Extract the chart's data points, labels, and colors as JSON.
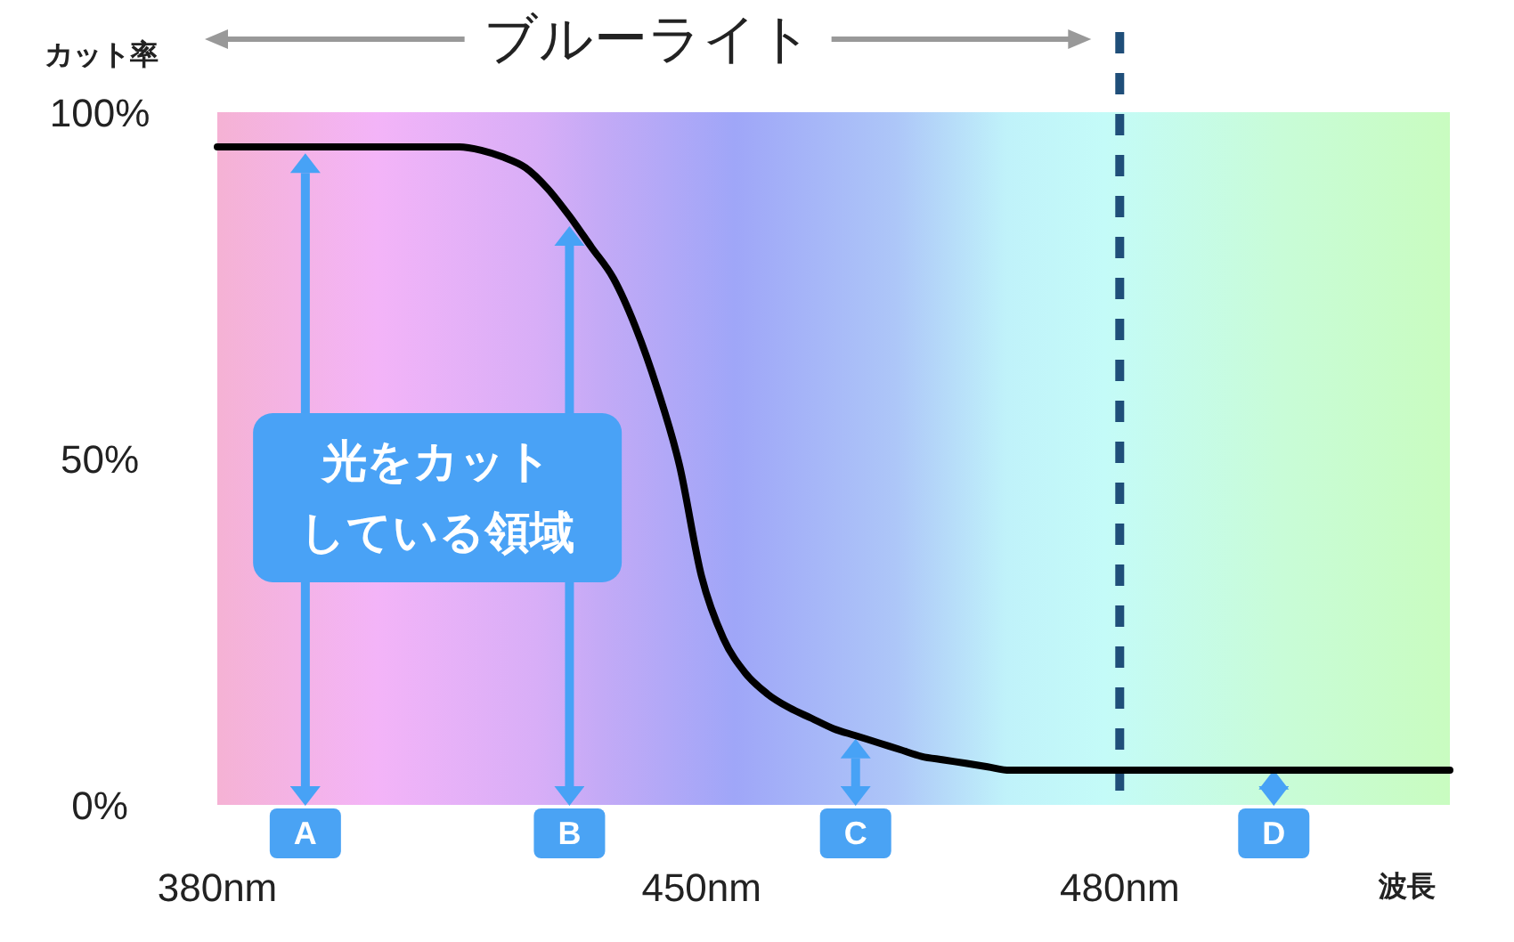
{
  "chart_data": {
    "type": "line",
    "xlabel": "波長",
    "ylabel": "カット率",
    "categories": [
      "380nm",
      null,
      null,
      null,
      null,
      null,
      null,
      null,
      null,
      null,
      null,
      null,
      null,
      null,
      null,
      null,
      null,
      null,
      null,
      null,
      null,
      null,
      "450nm",
      null,
      null,
      null,
      null,
      null,
      null,
      null,
      null,
      null,
      null,
      null,
      null,
      null,
      null,
      null,
      null,
      null,
      null,
      "480nm",
      null,
      null,
      null,
      null,
      null,
      null,
      null,
      null,
      null,
      null,
      null,
      null,
      null,
      null,
      null
    ],
    "ylim": [
      0,
      100
    ],
    "yticks": [
      {
        "value": 0,
        "label": "0%"
      },
      {
        "value": 50,
        "label": "50%"
      },
      {
        "value": 100,
        "label": "100%"
      }
    ],
    "series": [
      {
        "color": "#000000",
        "values": [
          95,
          95,
          95,
          95,
          95,
          95,
          95,
          95,
          95,
          95,
          95,
          95,
          94.5,
          93.5,
          92,
          89,
          85,
          80.5,
          76,
          69,
          60,
          49,
          33,
          24,
          19,
          16,
          14,
          12.5,
          11,
          10,
          9,
          8,
          7,
          6.5,
          6,
          5.5,
          5,
          5,
          5,
          5,
          5,
          5,
          5,
          5,
          5,
          5,
          5,
          5,
          5,
          5,
          5,
          5,
          5,
          5,
          5,
          5,
          5
        ]
      },
      {
        "type": "lollipop",
        "color": "#47a2f6",
        "marker": "triangle",
        "values": [
          null,
          null,
          null,
          null,
          92.5,
          null,
          null,
          null,
          null,
          null,
          null,
          null,
          null,
          null,
          null,
          null,
          82,
          null,
          null,
          null,
          null,
          null,
          null,
          null,
          null,
          null,
          null,
          null,
          null,
          8,
          null,
          null,
          null,
          null,
          null,
          null,
          null,
          null,
          null,
          null,
          null,
          null,
          null,
          null,
          null,
          null,
          null,
          null,
          3.5,
          null,
          null,
          null,
          null,
          null,
          null,
          null,
          null
        ]
      }
    ],
    "ref_lines": [
      {
        "axis": "x",
        "value": "480nm",
        "color": "#1f4e79",
        "line_style": "dashed"
      }
    ],
    "annotations": [
      "A",
      "B",
      "C",
      "D",
      "光をカットしている領域",
      "ブルーライト"
    ]
  }
}
